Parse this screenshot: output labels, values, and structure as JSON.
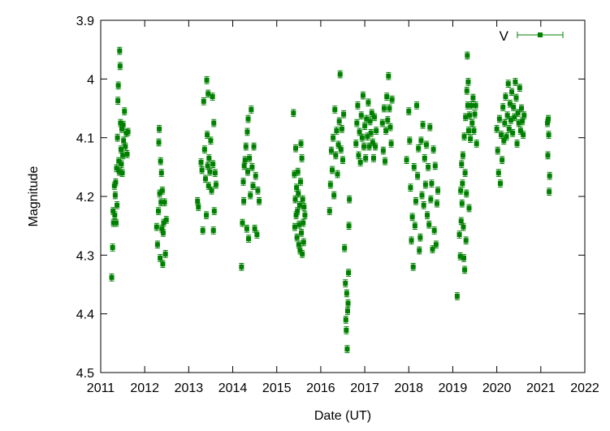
{
  "chart_data": {
    "type": "scatter",
    "title": "",
    "xlabel": "Date (UT)",
    "ylabel": "Magnitude",
    "xlim": [
      2011,
      2022
    ],
    "ylim": [
      4.5,
      3.9
    ],
    "y_inverted": true,
    "x_ticks": [
      "2011",
      "2012",
      "2013",
      "2014",
      "2015",
      "2016",
      "2017",
      "2018",
      "2019",
      "2020",
      "2021",
      "2022"
    ],
    "y_ticks": [
      "3.9",
      "4",
      "4.1",
      "4.2",
      "4.3",
      "4.4",
      "4.5"
    ],
    "grid": false,
    "legend_position": "top-right",
    "series": [
      {
        "name": "V",
        "color": "#008000",
        "marker": "square",
        "error_bar": 0.006,
        "points": [
          [
            2011.25,
            4.338
          ],
          [
            2011.27,
            4.287
          ],
          [
            2011.28,
            4.225
          ],
          [
            2011.29,
            4.245
          ],
          [
            2011.31,
            4.182
          ],
          [
            2011.32,
            4.232
          ],
          [
            2011.33,
            4.198
          ],
          [
            2011.34,
            4.176
          ],
          [
            2011.35,
            4.245
          ],
          [
            2011.36,
            4.152
          ],
          [
            2011.37,
            4.215
          ],
          [
            2011.38,
            4.1
          ],
          [
            2011.39,
            4.037
          ],
          [
            2011.4,
            4.011
          ],
          [
            2011.41,
            4.14
          ],
          [
            2011.42,
            4.158
          ],
          [
            2011.43,
            3.952
          ],
          [
            2011.44,
            3.978
          ],
          [
            2011.45,
            4.075
          ],
          [
            2011.46,
            4.12
          ],
          [
            2011.47,
            4.145
          ],
          [
            2011.48,
            4.085
          ],
          [
            2011.49,
            4.16
          ],
          [
            2011.5,
            4.13
          ],
          [
            2011.51,
            4.078
          ],
          [
            2011.52,
            4.105
          ],
          [
            2011.54,
            4.055
          ],
          [
            2011.56,
            4.115
          ],
          [
            2011.58,
            4.092
          ],
          [
            2011.6,
            4.128
          ],
          [
            2011.62,
            4.09
          ],
          [
            2012.27,
            4.252
          ],
          [
            2012.29,
            4.282
          ],
          [
            2012.31,
            4.225
          ],
          [
            2012.32,
            4.108
          ],
          [
            2012.33,
            4.085
          ],
          [
            2012.34,
            4.195
          ],
          [
            2012.35,
            4.305
          ],
          [
            2012.36,
            4.14
          ],
          [
            2012.37,
            4.21
          ],
          [
            2012.38,
            4.16
          ],
          [
            2012.39,
            4.255
          ],
          [
            2012.4,
            4.19
          ],
          [
            2012.41,
            4.315
          ],
          [
            2012.42,
            4.262
          ],
          [
            2012.43,
            4.245
          ],
          [
            2012.45,
            4.21
          ],
          [
            2012.47,
            4.298
          ],
          [
            2012.49,
            4.24
          ],
          [
            2013.2,
            4.208
          ],
          [
            2013.22,
            4.218
          ],
          [
            2013.28,
            4.142
          ],
          [
            2013.3,
            4.155
          ],
          [
            2013.32,
            4.258
          ],
          [
            2013.34,
            4.038
          ],
          [
            2013.36,
            4.12
          ],
          [
            2013.38,
            4.17
          ],
          [
            2013.4,
            4.232
          ],
          [
            2013.41,
            4.002
          ],
          [
            2013.42,
            4.095
          ],
          [
            2013.43,
            4.148
          ],
          [
            2013.44,
            4.025
          ],
          [
            2013.45,
            4.182
          ],
          [
            2013.46,
            4.135
          ],
          [
            2013.48,
            4.158
          ],
          [
            2013.5,
            4.105
          ],
          [
            2013.52,
            4.19
          ],
          [
            2013.54,
            4.03
          ],
          [
            2013.55,
            4.145
          ],
          [
            2013.56,
            4.258
          ],
          [
            2013.57,
            4.075
          ],
          [
            2013.58,
            4.225
          ],
          [
            2013.6,
            4.16
          ],
          [
            2013.62,
            4.18
          ],
          [
            2014.2,
            4.32
          ],
          [
            2014.22,
            4.245
          ],
          [
            2014.24,
            4.175
          ],
          [
            2014.25,
            4.208
          ],
          [
            2014.26,
            4.148
          ],
          [
            2014.28,
            4.138
          ],
          [
            2014.3,
            4.115
          ],
          [
            2014.32,
            4.255
          ],
          [
            2014.33,
            4.09
          ],
          [
            2014.34,
            4.158
          ],
          [
            2014.35,
            4.068
          ],
          [
            2014.36,
            4.272
          ],
          [
            2014.38,
            4.135
          ],
          [
            2014.4,
            4.198
          ],
          [
            2014.42,
            4.052
          ],
          [
            2014.44,
            4.15
          ],
          [
            2014.46,
            4.182
          ],
          [
            2014.48,
            4.115
          ],
          [
            2014.5,
            4.255
          ],
          [
            2014.52,
            4.165
          ],
          [
            2014.55,
            4.265
          ],
          [
            2014.57,
            4.19
          ],
          [
            2014.6,
            4.208
          ],
          [
            2015.38,
            4.058
          ],
          [
            2015.4,
            4.162
          ],
          [
            2015.41,
            4.252
          ],
          [
            2015.42,
            4.205
          ],
          [
            2015.43,
            4.118
          ],
          [
            2015.44,
            4.232
          ],
          [
            2015.45,
            4.185
          ],
          [
            2015.46,
            4.27
          ],
          [
            2015.47,
            4.225
          ],
          [
            2015.48,
            4.158
          ],
          [
            2015.49,
            4.195
          ],
          [
            2015.5,
            4.282
          ],
          [
            2015.51,
            4.248
          ],
          [
            2015.52,
            4.215
          ],
          [
            2015.53,
            4.292
          ],
          [
            2015.54,
            4.175
          ],
          [
            2015.55,
            4.11
          ],
          [
            2015.56,
            4.262
          ],
          [
            2015.57,
            4.135
          ],
          [
            2015.58,
            4.298
          ],
          [
            2015.59,
            4.205
          ],
          [
            2015.6,
            4.245
          ],
          [
            2015.61,
            4.278
          ],
          [
            2015.62,
            4.218
          ],
          [
            2015.64,
            4.232
          ],
          [
            2016.2,
            4.225
          ],
          [
            2016.22,
            4.18
          ],
          [
            2016.24,
            4.122
          ],
          [
            2016.26,
            4.155
          ],
          [
            2016.28,
            4.1
          ],
          [
            2016.3,
            4.198
          ],
          [
            2016.32,
            4.052
          ],
          [
            2016.34,
            4.13
          ],
          [
            2016.36,
            4.088
          ],
          [
            2016.38,
            4.162
          ],
          [
            2016.4,
            4.112
          ],
          [
            2016.42,
            4.072
          ],
          [
            2016.44,
            3.992
          ],
          [
            2016.46,
            4.12
          ],
          [
            2016.48,
            4.085
          ],
          [
            2016.5,
            4.138
          ],
          [
            2016.52,
            4.06
          ],
          [
            2016.54,
            4.288
          ],
          [
            2016.56,
            4.348
          ],
          [
            2016.57,
            4.41
          ],
          [
            2016.58,
            4.428
          ],
          [
            2016.59,
            4.365
          ],
          [
            2016.6,
            4.46
          ],
          [
            2016.61,
            4.395
          ],
          [
            2016.62,
            4.382
          ],
          [
            2016.63,
            4.33
          ],
          [
            2016.64,
            4.25
          ],
          [
            2016.65,
            4.205
          ],
          [
            2016.8,
            4.11
          ],
          [
            2016.82,
            4.075
          ],
          [
            2016.84,
            4.045
          ],
          [
            2016.86,
            4.13
          ],
          [
            2016.88,
            4.09
          ],
          [
            2016.9,
            4.142
          ],
          [
            2016.92,
            4.062
          ],
          [
            2016.94,
            4.1
          ],
          [
            2016.96,
            4.028
          ],
          [
            2016.98,
            4.115
          ],
          [
            2017.0,
            4.08
          ],
          [
            2017.02,
            4.135
          ],
          [
            2017.04,
            4.068
          ],
          [
            2017.06,
            4.098
          ],
          [
            2017.08,
            4.04
          ],
          [
            2017.1,
            4.115
          ],
          [
            2017.12,
            4.072
          ],
          [
            2017.14,
            4.092
          ],
          [
            2017.16,
            4.058
          ],
          [
            2017.18,
            4.108
          ],
          [
            2017.2,
            4.135
          ],
          [
            2017.22,
            4.065
          ],
          [
            2017.24,
            4.115
          ],
          [
            2017.26,
            4.088
          ],
          [
            2017.4,
            4.075
          ],
          [
            2017.42,
            4.122
          ],
          [
            2017.44,
            4.05
          ],
          [
            2017.46,
            4.14
          ],
          [
            2017.48,
            4.088
          ],
          [
            2017.5,
            4.03
          ],
          [
            2017.52,
            4.07
          ],
          [
            2017.54,
            3.995
          ],
          [
            2017.56,
            4.05
          ],
          [
            2017.58,
            4.082
          ],
          [
            2017.6,
            4.11
          ],
          [
            2017.62,
            4.035
          ],
          [
            2017.95,
            4.138
          ],
          [
            2018.0,
            4.055
          ],
          [
            2018.02,
            4.105
          ],
          [
            2018.04,
            4.185
          ],
          [
            2018.06,
            4.275
          ],
          [
            2018.08,
            4.235
          ],
          [
            2018.1,
            4.32
          ],
          [
            2018.12,
            4.15
          ],
          [
            2018.14,
            4.25
          ],
          [
            2018.16,
            4.208
          ],
          [
            2018.18,
            4.045
          ],
          [
            2018.2,
            4.165
          ],
          [
            2018.22,
            4.118
          ],
          [
            2018.24,
            4.292
          ],
          [
            2018.26,
            4.27
          ],
          [
            2018.28,
            4.105
          ],
          [
            2018.3,
            4.198
          ],
          [
            2018.32,
            4.078
          ],
          [
            2018.34,
            4.215
          ],
          [
            2018.36,
            4.135
          ],
          [
            2018.38,
            4.18
          ],
          [
            2018.4,
            4.112
          ],
          [
            2018.42,
            4.232
          ],
          [
            2018.44,
            4.15
          ],
          [
            2018.46,
            4.248
          ],
          [
            2018.48,
            4.082
          ],
          [
            2018.5,
            4.205
          ],
          [
            2018.52,
            4.178
          ],
          [
            2018.54,
            4.29
          ],
          [
            2018.56,
            4.12
          ],
          [
            2018.58,
            4.258
          ],
          [
            2018.6,
            4.148
          ],
          [
            2018.62,
            4.282
          ],
          [
            2018.64,
            4.212
          ],
          [
            2018.66,
            4.19
          ],
          [
            2019.1,
            4.37
          ],
          [
            2019.15,
            4.265
          ],
          [
            2019.17,
            4.302
          ],
          [
            2019.18,
            4.19
          ],
          [
            2019.19,
            4.242
          ],
          [
            2019.2,
            4.145
          ],
          [
            2019.21,
            4.212
          ],
          [
            2019.22,
            4.178
          ],
          [
            2019.23,
            4.13
          ],
          [
            2019.24,
            4.252
          ],
          [
            2019.25,
            4.305
          ],
          [
            2019.26,
            4.098
          ],
          [
            2019.27,
            4.325
          ],
          [
            2019.28,
            4.16
          ],
          [
            2019.29,
            4.065
          ],
          [
            2019.3,
            4.275
          ],
          [
            2019.31,
            4.195
          ],
          [
            2019.32,
            4.02
          ],
          [
            2019.33,
            3.96
          ],
          [
            2019.34,
            4.045
          ],
          [
            2019.35,
            4.005
          ],
          [
            2019.36,
            4.088
          ],
          [
            2019.37,
            4.22
          ],
          [
            2019.38,
            4.062
          ],
          [
            2019.4,
            4.102
          ],
          [
            2019.42,
            4.045
          ],
          [
            2019.44,
            4.075
          ],
          [
            2019.46,
            4.032
          ],
          [
            2019.48,
            4.088
          ],
          [
            2019.5,
            4.06
          ],
          [
            2019.52,
            4.045
          ],
          [
            2019.54,
            4.11
          ],
          [
            2020.0,
            4.085
          ],
          [
            2020.02,
            4.122
          ],
          [
            2020.04,
            4.16
          ],
          [
            2020.06,
            4.068
          ],
          [
            2020.08,
            4.178
          ],
          [
            2020.1,
            4.095
          ],
          [
            2020.12,
            4.138
          ],
          [
            2020.14,
            4.048
          ],
          [
            2020.16,
            4.105
          ],
          [
            2020.18,
            4.075
          ],
          [
            2020.2,
            4.03
          ],
          [
            2020.22,
            4.098
          ],
          [
            2020.24,
            4.062
          ],
          [
            2020.26,
            4.008
          ],
          [
            2020.28,
            4.085
          ],
          [
            2020.3,
            4.042
          ],
          [
            2020.32,
            4.07
          ],
          [
            2020.34,
            4.022
          ],
          [
            2020.36,
            4.092
          ],
          [
            2020.38,
            4.048
          ],
          [
            2020.4,
            4.065
          ],
          [
            2020.42,
            4.005
          ],
          [
            2020.44,
            4.032
          ],
          [
            2020.46,
            4.11
          ],
          [
            2020.48,
            4.058
          ],
          [
            2020.5,
            4.075
          ],
          [
            2020.52,
            4.015
          ],
          [
            2020.54,
            4.088
          ],
          [
            2020.56,
            4.05
          ],
          [
            2020.58,
            4.072
          ],
          [
            2020.6,
            4.095
          ],
          [
            2020.62,
            4.062
          ],
          [
            2021.15,
            4.075
          ],
          [
            2021.16,
            4.13
          ],
          [
            2021.17,
            4.068
          ],
          [
            2021.18,
            4.095
          ],
          [
            2021.19,
            4.192
          ],
          [
            2021.2,
            4.165
          ]
        ]
      }
    ]
  }
}
